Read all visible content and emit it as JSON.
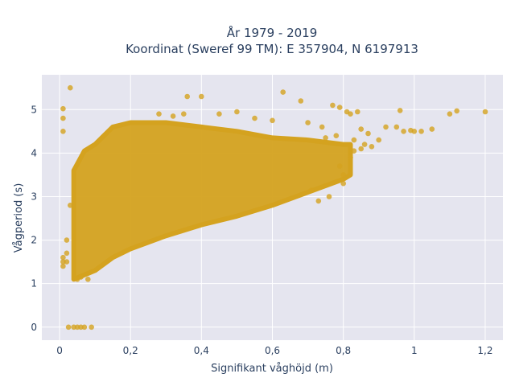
{
  "chart_data": {
    "type": "scatter",
    "title_line1": "År 1979 - 2019",
    "title_line2": "Koordinat (Sweref 99 TM): E 357904, N 6197913",
    "xlabel": "Signifikant våghöjd (m)",
    "ylabel": "Vågperiod (s)",
    "xlim": [
      -0.05,
      1.25
    ],
    "ylim": [
      -0.3,
      5.8
    ],
    "x_ticks": [
      0,
      0.2,
      0.4,
      0.6,
      0.8,
      1,
      1.2
    ],
    "x_tick_labels": [
      "0",
      "0,2",
      "0,4",
      "0,6",
      "0,8",
      "1",
      "1,2"
    ],
    "y_ticks": [
      0,
      1,
      2,
      3,
      4,
      5
    ],
    "y_tick_labels": [
      "0",
      "1",
      "2",
      "3",
      "4",
      "5"
    ],
    "grid": true,
    "series_color": "#d4a21f",
    "background_color": "#e5e5ef",
    "dense_band": {
      "x_start": 0.04,
      "x_end": 0.82,
      "upper": [
        [
          0.04,
          3.6
        ],
        [
          0.07,
          4.05
        ],
        [
          0.1,
          4.2
        ],
        [
          0.15,
          4.6
        ],
        [
          0.2,
          4.7
        ],
        [
          0.3,
          4.7
        ],
        [
          0.4,
          4.6
        ],
        [
          0.5,
          4.5
        ],
        [
          0.6,
          4.35
        ],
        [
          0.7,
          4.3
        ],
        [
          0.8,
          4.2
        ],
        [
          0.82,
          4.2
        ]
      ],
      "lower": [
        [
          0.04,
          1.1
        ],
        [
          0.07,
          1.2
        ],
        [
          0.1,
          1.3
        ],
        [
          0.15,
          1.6
        ],
        [
          0.2,
          1.8
        ],
        [
          0.3,
          2.1
        ],
        [
          0.4,
          2.35
        ],
        [
          0.5,
          2.55
        ],
        [
          0.6,
          2.8
        ],
        [
          0.7,
          3.1
        ],
        [
          0.8,
          3.4
        ],
        [
          0.82,
          3.5
        ]
      ]
    },
    "points": [
      [
        0.01,
        1.5
      ],
      [
        0.01,
        1.6
      ],
      [
        0.01,
        1.4
      ],
      [
        0.01,
        4.5
      ],
      [
        0.01,
        4.8
      ],
      [
        0.01,
        5.02
      ],
      [
        0.02,
        1.5
      ],
      [
        0.02,
        1.7
      ],
      [
        0.02,
        2.0
      ],
      [
        0.03,
        2.8
      ],
      [
        0.03,
        5.5
      ],
      [
        0.025,
        0.0
      ],
      [
        0.04,
        0.0
      ],
      [
        0.05,
        0.0
      ],
      [
        0.06,
        0.0
      ],
      [
        0.07,
        0.0
      ],
      [
        0.09,
        0.0
      ],
      [
        0.05,
        1.1
      ],
      [
        0.06,
        1.15
      ],
      [
        0.08,
        1.1
      ],
      [
        0.28,
        4.9
      ],
      [
        0.32,
        4.85
      ],
      [
        0.35,
        4.9
      ],
      [
        0.4,
        5.3
      ],
      [
        0.36,
        5.3
      ],
      [
        0.45,
        4.9
      ],
      [
        0.5,
        4.95
      ],
      [
        0.55,
        4.8
      ],
      [
        0.6,
        4.75
      ],
      [
        0.63,
        5.4
      ],
      [
        0.68,
        5.2
      ],
      [
        0.7,
        4.7
      ],
      [
        0.74,
        4.6
      ],
      [
        0.77,
        5.1
      ],
      [
        0.79,
        5.05
      ],
      [
        0.81,
        4.95
      ],
      [
        0.82,
        4.9
      ],
      [
        0.84,
        4.95
      ],
      [
        0.85,
        4.55
      ],
      [
        0.86,
        4.2
      ],
      [
        0.88,
        4.15
      ],
      [
        0.9,
        4.3
      ],
      [
        0.87,
        4.45
      ],
      [
        0.92,
        4.6
      ],
      [
        0.95,
        4.6
      ],
      [
        0.97,
        4.5
      ],
      [
        0.96,
        4.98
      ],
      [
        0.99,
        4.52
      ],
      [
        1.0,
        4.5
      ],
      [
        1.02,
        4.5
      ],
      [
        1.05,
        4.55
      ],
      [
        1.1,
        4.9
      ],
      [
        1.12,
        4.97
      ],
      [
        1.2,
        4.95
      ],
      [
        0.8,
        3.3
      ],
      [
        0.8,
        3.5
      ],
      [
        0.76,
        3.0
      ],
      [
        0.73,
        2.9
      ],
      [
        0.71,
        3.15
      ],
      [
        0.79,
        3.7
      ],
      [
        0.82,
        3.9
      ],
      [
        0.83,
        4.05
      ],
      [
        0.85,
        4.1
      ],
      [
        0.83,
        4.3
      ],
      [
        0.78,
        4.4
      ],
      [
        0.75,
        4.35
      ]
    ]
  }
}
